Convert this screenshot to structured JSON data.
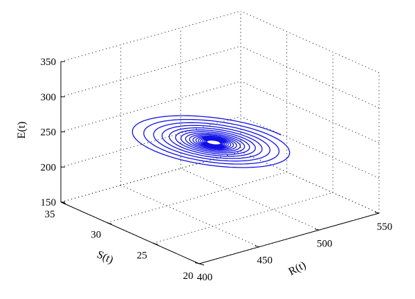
{
  "chart_data": {
    "type": "line3d",
    "title": "",
    "axes": {
      "x": {
        "label": "R(t)",
        "range": [
          400,
          550
        ],
        "ticks": [
          "400",
          "450",
          "500",
          "550"
        ]
      },
      "y": {
        "label": "S(t)",
        "range": [
          20,
          35
        ],
        "ticks": [
          "20",
          "25",
          "30",
          "35"
        ]
      },
      "z": {
        "label": "E(t)",
        "range": [
          150,
          350
        ],
        "ticks": [
          "150",
          "200",
          "250",
          "300",
          "350"
        ]
      }
    },
    "grid": true,
    "series": [
      {
        "color": "#1010e6",
        "description_type": "damped spiral converging to equilibrium",
        "center": {
          "R": 470,
          "S": 27.5,
          "E": 245
        },
        "start": {
          "R": 505,
          "S": 27,
          "E": 233
        },
        "turns": 17
      }
    ]
  }
}
